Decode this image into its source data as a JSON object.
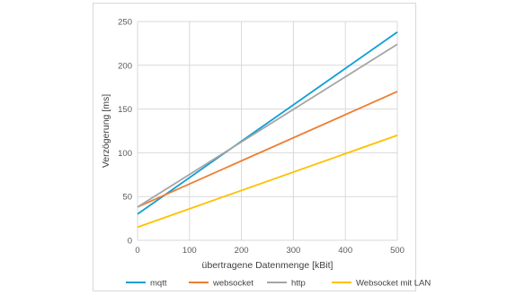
{
  "chart_data": {
    "type": "line",
    "title": "",
    "xlabel": "übertragene Datenmenge [kBit]",
    "ylabel": "Verzögerung [ms]",
    "xlim": [
      0,
      500
    ],
    "ylim": [
      0,
      250
    ],
    "xticks": [
      0,
      100,
      200,
      300,
      400,
      500
    ],
    "yticks": [
      0,
      50,
      100,
      150,
      200,
      250
    ],
    "grid": true,
    "legend_position": "bottom",
    "series": [
      {
        "name": "mqtt",
        "color": "#0f9ed5",
        "x": [
          0,
          500
        ],
        "y": [
          30,
          238
        ]
      },
      {
        "name": "websocket",
        "color": "#ed7d31",
        "x": [
          0,
          500
        ],
        "y": [
          38,
          170
        ]
      },
      {
        "name": "http",
        "color": "#a5a5a5",
        "x": [
          0,
          500
        ],
        "y": [
          38,
          224
        ]
      },
      {
        "name": "Websocket mit LAN",
        "color": "#ffc000",
        "x": [
          0,
          500
        ],
        "y": [
          15,
          120
        ]
      }
    ]
  }
}
